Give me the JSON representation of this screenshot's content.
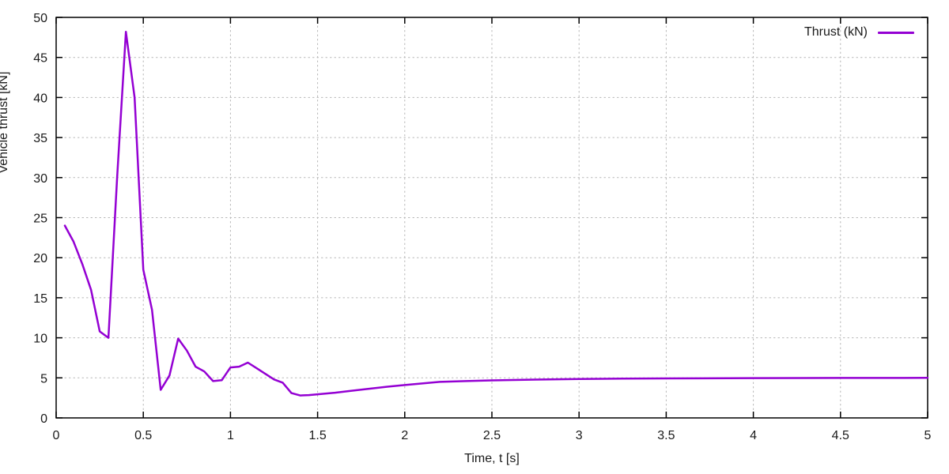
{
  "chart_data": {
    "type": "line",
    "title": "",
    "xlabel": "Time, t [s]",
    "ylabel": "Vehicle thrust [kN]",
    "xlim": [
      0,
      5
    ],
    "ylim": [
      0,
      50
    ],
    "xticks": [
      0,
      0.5,
      1,
      1.5,
      2,
      2.5,
      3,
      3.5,
      4,
      4.5,
      5
    ],
    "yticks": [
      0,
      5,
      10,
      15,
      20,
      25,
      30,
      35,
      40,
      45,
      50
    ],
    "grid": true,
    "legend_position": "top-right-inside",
    "series": [
      {
        "name": "Thrust (kN)",
        "color": "#9400d3",
        "points": [
          [
            0.05,
            24.0
          ],
          [
            0.1,
            22.0
          ],
          [
            0.15,
            19.2
          ],
          [
            0.2,
            16.0
          ],
          [
            0.25,
            10.8
          ],
          [
            0.3,
            10.0
          ],
          [
            0.35,
            30.0
          ],
          [
            0.4,
            48.2
          ],
          [
            0.45,
            40.0
          ],
          [
            0.5,
            18.5
          ],
          [
            0.55,
            13.5
          ],
          [
            0.6,
            3.5
          ],
          [
            0.65,
            5.3
          ],
          [
            0.7,
            9.9
          ],
          [
            0.75,
            8.4
          ],
          [
            0.8,
            6.4
          ],
          [
            0.85,
            5.8
          ],
          [
            0.9,
            4.6
          ],
          [
            0.95,
            4.7
          ],
          [
            1.0,
            6.3
          ],
          [
            1.05,
            6.4
          ],
          [
            1.1,
            6.9
          ],
          [
            1.15,
            6.2
          ],
          [
            1.2,
            5.5
          ],
          [
            1.25,
            4.8
          ],
          [
            1.3,
            4.4
          ],
          [
            1.35,
            3.1
          ],
          [
            1.4,
            2.8
          ],
          [
            1.45,
            2.85
          ],
          [
            1.5,
            2.95
          ],
          [
            1.6,
            3.15
          ],
          [
            1.7,
            3.4
          ],
          [
            1.8,
            3.65
          ],
          [
            1.9,
            3.9
          ],
          [
            2.0,
            4.1
          ],
          [
            2.1,
            4.3
          ],
          [
            2.2,
            4.5
          ],
          [
            2.35,
            4.6
          ],
          [
            2.5,
            4.68
          ],
          [
            2.75,
            4.78
          ],
          [
            3.0,
            4.85
          ],
          [
            3.25,
            4.9
          ],
          [
            3.5,
            4.93
          ],
          [
            4.0,
            4.97
          ],
          [
            4.5,
            4.99
          ],
          [
            5.0,
            5.0
          ]
        ]
      }
    ]
  },
  "colors": {
    "background": "#ffffff",
    "border": "#000000",
    "grid": "#b5b5b5",
    "text": "#1a1a1a",
    "accent": "#9400d3"
  }
}
